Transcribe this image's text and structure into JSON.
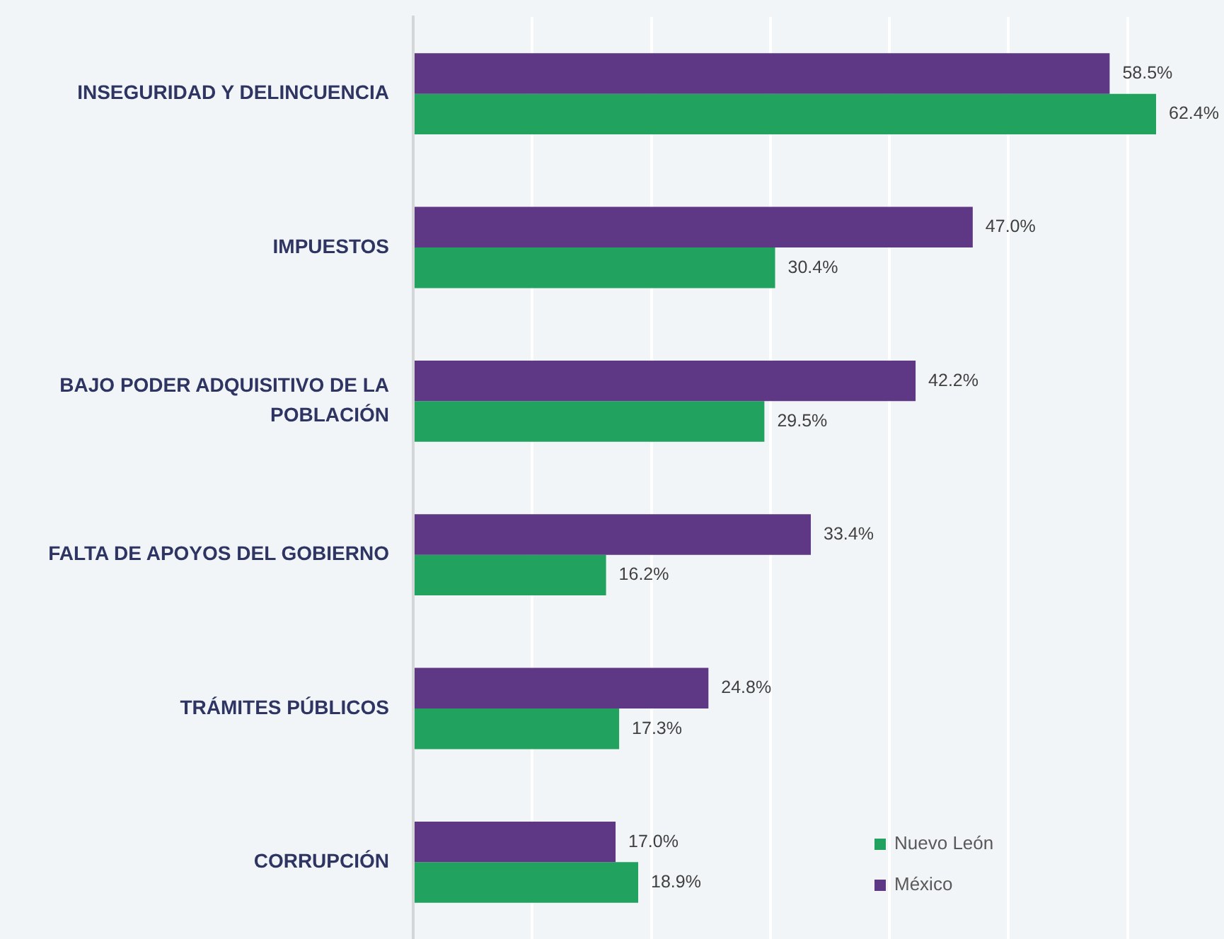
{
  "chart_data": {
    "type": "bar",
    "orientation": "horizontal",
    "categories": [
      "INSEGURIDAD Y DELINCUENCIA",
      "IMPUESTOS",
      "BAJO PODER ADQUISITIVO DE LA POBLACIÓN",
      "FALTA DE APOYOS DEL GOBIERNO",
      "TRÁMITES PÚBLICOS",
      "CORRUPCIÓN"
    ],
    "series": [
      {
        "name": "Nuevo León",
        "color": "#21a25e",
        "values": [
          62.4,
          30.4,
          29.5,
          16.2,
          17.3,
          18.9
        ],
        "value_labels": [
          "62.4%",
          "30.4%",
          "29.5%",
          "16.2%",
          "17.3%",
          "18.9%"
        ]
      },
      {
        "name": "México",
        "color": "#5e3884",
        "values": [
          58.5,
          47.0,
          42.2,
          33.4,
          24.8,
          17.0
        ],
        "value_labels": [
          "58.5%",
          "47.0%",
          "42.2%",
          "33.4%",
          "24.8%",
          "17.0%"
        ]
      }
    ],
    "xticks": [
      {
        "value": 0,
        "label": null
      },
      {
        "value": 10,
        "label": null
      },
      {
        "value": 20,
        "label": null
      },
      {
        "value": 30,
        "label": null
      },
      {
        "value": 40,
        "label": null
      },
      {
        "value": 50,
        "label": null
      },
      {
        "value": 60,
        "label": null
      }
    ],
    "grid": "x",
    "legend": "bottom right",
    "tick_labels": "y"
  }
}
